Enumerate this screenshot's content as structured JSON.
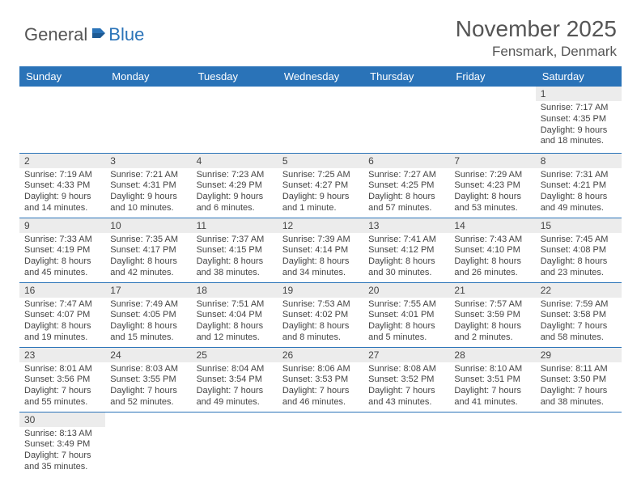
{
  "logo": {
    "general": "General",
    "blue": "Blue"
  },
  "title": "November 2025",
  "location": "Fensmark, Denmark",
  "colors": {
    "header_bg": "#2a73b8",
    "header_text": "#ffffff",
    "daynum_bg": "#ececec",
    "border": "#2a73b8",
    "body_text": "#444444",
    "page_bg": "#ffffff"
  },
  "weekdays": [
    "Sunday",
    "Monday",
    "Tuesday",
    "Wednesday",
    "Thursday",
    "Friday",
    "Saturday"
  ],
  "weeks": [
    [
      null,
      null,
      null,
      null,
      null,
      null,
      {
        "n": "1",
        "sr": "Sunrise: 7:17 AM",
        "ss": "Sunset: 4:35 PM",
        "d1": "Daylight: 9 hours",
        "d2": "and 18 minutes."
      }
    ],
    [
      {
        "n": "2",
        "sr": "Sunrise: 7:19 AM",
        "ss": "Sunset: 4:33 PM",
        "d1": "Daylight: 9 hours",
        "d2": "and 14 minutes."
      },
      {
        "n": "3",
        "sr": "Sunrise: 7:21 AM",
        "ss": "Sunset: 4:31 PM",
        "d1": "Daylight: 9 hours",
        "d2": "and 10 minutes."
      },
      {
        "n": "4",
        "sr": "Sunrise: 7:23 AM",
        "ss": "Sunset: 4:29 PM",
        "d1": "Daylight: 9 hours",
        "d2": "and 6 minutes."
      },
      {
        "n": "5",
        "sr": "Sunrise: 7:25 AM",
        "ss": "Sunset: 4:27 PM",
        "d1": "Daylight: 9 hours",
        "d2": "and 1 minute."
      },
      {
        "n": "6",
        "sr": "Sunrise: 7:27 AM",
        "ss": "Sunset: 4:25 PM",
        "d1": "Daylight: 8 hours",
        "d2": "and 57 minutes."
      },
      {
        "n": "7",
        "sr": "Sunrise: 7:29 AM",
        "ss": "Sunset: 4:23 PM",
        "d1": "Daylight: 8 hours",
        "d2": "and 53 minutes."
      },
      {
        "n": "8",
        "sr": "Sunrise: 7:31 AM",
        "ss": "Sunset: 4:21 PM",
        "d1": "Daylight: 8 hours",
        "d2": "and 49 minutes."
      }
    ],
    [
      {
        "n": "9",
        "sr": "Sunrise: 7:33 AM",
        "ss": "Sunset: 4:19 PM",
        "d1": "Daylight: 8 hours",
        "d2": "and 45 minutes."
      },
      {
        "n": "10",
        "sr": "Sunrise: 7:35 AM",
        "ss": "Sunset: 4:17 PM",
        "d1": "Daylight: 8 hours",
        "d2": "and 42 minutes."
      },
      {
        "n": "11",
        "sr": "Sunrise: 7:37 AM",
        "ss": "Sunset: 4:15 PM",
        "d1": "Daylight: 8 hours",
        "d2": "and 38 minutes."
      },
      {
        "n": "12",
        "sr": "Sunrise: 7:39 AM",
        "ss": "Sunset: 4:14 PM",
        "d1": "Daylight: 8 hours",
        "d2": "and 34 minutes."
      },
      {
        "n": "13",
        "sr": "Sunrise: 7:41 AM",
        "ss": "Sunset: 4:12 PM",
        "d1": "Daylight: 8 hours",
        "d2": "and 30 minutes."
      },
      {
        "n": "14",
        "sr": "Sunrise: 7:43 AM",
        "ss": "Sunset: 4:10 PM",
        "d1": "Daylight: 8 hours",
        "d2": "and 26 minutes."
      },
      {
        "n": "15",
        "sr": "Sunrise: 7:45 AM",
        "ss": "Sunset: 4:08 PM",
        "d1": "Daylight: 8 hours",
        "d2": "and 23 minutes."
      }
    ],
    [
      {
        "n": "16",
        "sr": "Sunrise: 7:47 AM",
        "ss": "Sunset: 4:07 PM",
        "d1": "Daylight: 8 hours",
        "d2": "and 19 minutes."
      },
      {
        "n": "17",
        "sr": "Sunrise: 7:49 AM",
        "ss": "Sunset: 4:05 PM",
        "d1": "Daylight: 8 hours",
        "d2": "and 15 minutes."
      },
      {
        "n": "18",
        "sr": "Sunrise: 7:51 AM",
        "ss": "Sunset: 4:04 PM",
        "d1": "Daylight: 8 hours",
        "d2": "and 12 minutes."
      },
      {
        "n": "19",
        "sr": "Sunrise: 7:53 AM",
        "ss": "Sunset: 4:02 PM",
        "d1": "Daylight: 8 hours",
        "d2": "and 8 minutes."
      },
      {
        "n": "20",
        "sr": "Sunrise: 7:55 AM",
        "ss": "Sunset: 4:01 PM",
        "d1": "Daylight: 8 hours",
        "d2": "and 5 minutes."
      },
      {
        "n": "21",
        "sr": "Sunrise: 7:57 AM",
        "ss": "Sunset: 3:59 PM",
        "d1": "Daylight: 8 hours",
        "d2": "and 2 minutes."
      },
      {
        "n": "22",
        "sr": "Sunrise: 7:59 AM",
        "ss": "Sunset: 3:58 PM",
        "d1": "Daylight: 7 hours",
        "d2": "and 58 minutes."
      }
    ],
    [
      {
        "n": "23",
        "sr": "Sunrise: 8:01 AM",
        "ss": "Sunset: 3:56 PM",
        "d1": "Daylight: 7 hours",
        "d2": "and 55 minutes."
      },
      {
        "n": "24",
        "sr": "Sunrise: 8:03 AM",
        "ss": "Sunset: 3:55 PM",
        "d1": "Daylight: 7 hours",
        "d2": "and 52 minutes."
      },
      {
        "n": "25",
        "sr": "Sunrise: 8:04 AM",
        "ss": "Sunset: 3:54 PM",
        "d1": "Daylight: 7 hours",
        "d2": "and 49 minutes."
      },
      {
        "n": "26",
        "sr": "Sunrise: 8:06 AM",
        "ss": "Sunset: 3:53 PM",
        "d1": "Daylight: 7 hours",
        "d2": "and 46 minutes."
      },
      {
        "n": "27",
        "sr": "Sunrise: 8:08 AM",
        "ss": "Sunset: 3:52 PM",
        "d1": "Daylight: 7 hours",
        "d2": "and 43 minutes."
      },
      {
        "n": "28",
        "sr": "Sunrise: 8:10 AM",
        "ss": "Sunset: 3:51 PM",
        "d1": "Daylight: 7 hours",
        "d2": "and 41 minutes."
      },
      {
        "n": "29",
        "sr": "Sunrise: 8:11 AM",
        "ss": "Sunset: 3:50 PM",
        "d1": "Daylight: 7 hours",
        "d2": "and 38 minutes."
      }
    ],
    [
      {
        "n": "30",
        "sr": "Sunrise: 8:13 AM",
        "ss": "Sunset: 3:49 PM",
        "d1": "Daylight: 7 hours",
        "d2": "and 35 minutes."
      },
      null,
      null,
      null,
      null,
      null,
      null
    ]
  ]
}
